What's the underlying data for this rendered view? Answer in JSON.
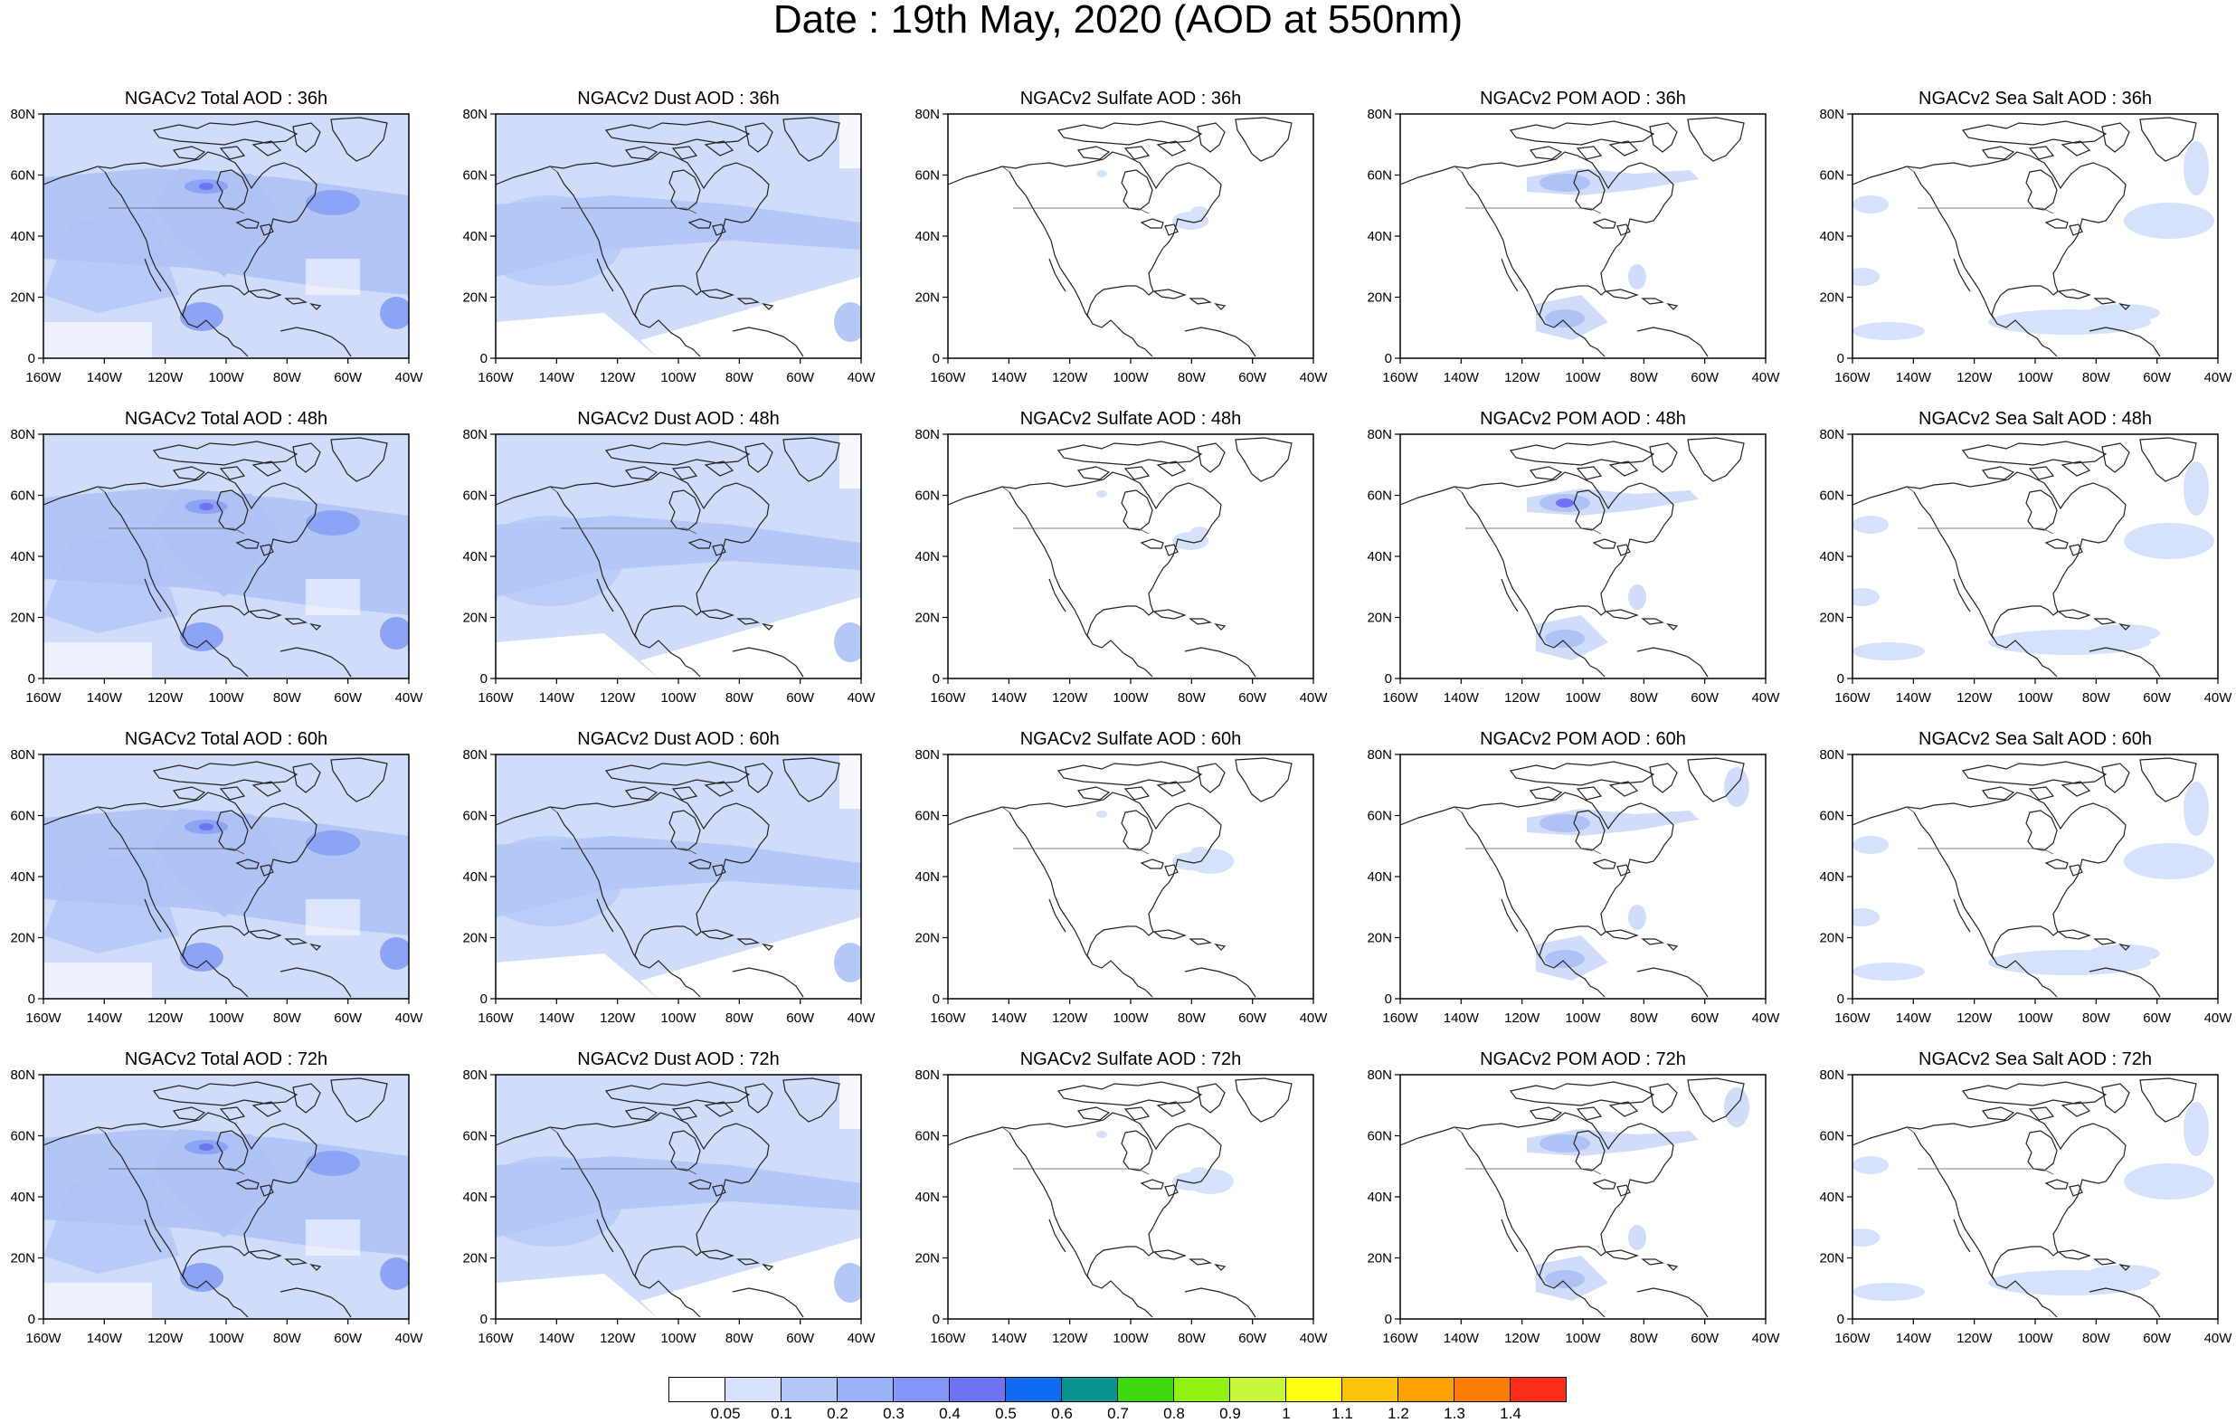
{
  "title": "Date : 19th May, 2020 (AOD at 550nm)",
  "lat_ticks": [
    "80N",
    "60N",
    "40N",
    "20N",
    "0"
  ],
  "lon_ticks": [
    "160W",
    "140W",
    "120W",
    "100W",
    "80W",
    "60W",
    "40W"
  ],
  "panel_titles": [
    [
      "NGACv2 Total AOD : 36h",
      "NGACv2 Dust AOD : 36h",
      "NGACv2 Sulfate AOD : 36h",
      "NGACv2 POM AOD : 36h",
      "NGACv2 Sea Salt AOD : 36h"
    ],
    [
      "NGACv2 Total AOD : 48h",
      "NGACv2 Dust AOD : 48h",
      "NGACv2 Sulfate AOD : 48h",
      "NGACv2 POM AOD : 48h",
      "NGACv2 Sea Salt AOD : 48h"
    ],
    [
      "NGACv2 Total AOD : 60h",
      "NGACv2 Dust AOD : 60h",
      "NGACv2 Sulfate AOD : 60h",
      "NGACv2 POM AOD : 60h",
      "NGACv2 Sea Salt AOD : 60h"
    ],
    [
      "NGACv2 Total AOD : 72h",
      "NGACv2 Dust AOD : 72h",
      "NGACv2 Sulfate AOD : 72h",
      "NGACv2 POM AOD : 72h",
      "NGACv2 Sea Salt  AOD : 72h"
    ]
  ],
  "colorbar": {
    "labels": [
      "0.05",
      "0.1",
      "0.2",
      "0.3",
      "0.4",
      "0.5",
      "0.6",
      "0.7",
      "0.8",
      "0.9",
      "1",
      "1.1",
      "1.2",
      "1.3",
      "1.4"
    ],
    "colors": [
      "#ffffff",
      "#d6e2fb",
      "#b4c8f7",
      "#97b2f5",
      "#8396f6",
      "#6d73f3",
      "#0f6bf0",
      "#07938e",
      "#3ed811",
      "#8ff311",
      "#c7f53a",
      "#ffff15",
      "#fbc30b",
      "#fba100",
      "#fb7c07",
      "#f92e1a"
    ]
  },
  "fields": {
    "total": {
      "level": 0.1,
      "colors": {
        "base": "#d0dcfa",
        "mid": "#aec2f6",
        "high": "#8ca4f3",
        "peak": "#6d73f3"
      }
    },
    "dust": {
      "level": 0.1,
      "colors": {
        "base": "#d0dcfa",
        "mid": "#b4c8f7"
      }
    },
    "sulfate": {
      "level": 0.05,
      "colors": {
        "base": "#d6e2fb"
      }
    },
    "pom": {
      "level": 0.1,
      "colors": {
        "base": "#d0dcfa",
        "mid": "#aec2f6",
        "peak": "#6d73f3"
      }
    },
    "seasalt": {
      "level": 0.05,
      "colors": {
        "base": "#d6e2fb"
      }
    }
  }
}
